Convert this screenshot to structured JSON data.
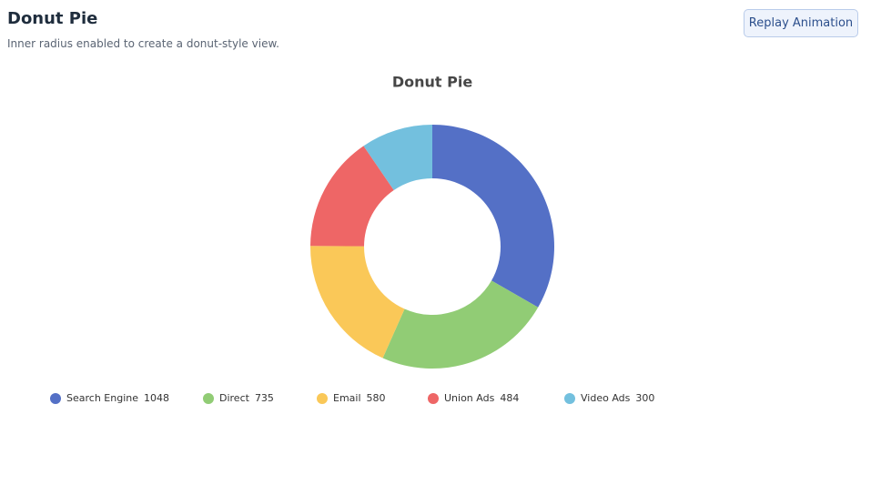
{
  "header": {
    "title": "Donut Pie",
    "subtitle": "Inner radius enabled to create a donut-style view.",
    "button": "Replay Animation"
  },
  "chart_data": {
    "type": "donut",
    "title": "Donut Pie",
    "categories": [
      "Search Engine",
      "Direct",
      "Email",
      "Union Ads",
      "Video Ads"
    ],
    "values": [
      1048,
      735,
      580,
      484,
      300
    ],
    "colors": [
      "#5470c6",
      "#91cc75",
      "#fac858",
      "#ee6666",
      "#73c0de"
    ],
    "legend": "bottom"
  }
}
